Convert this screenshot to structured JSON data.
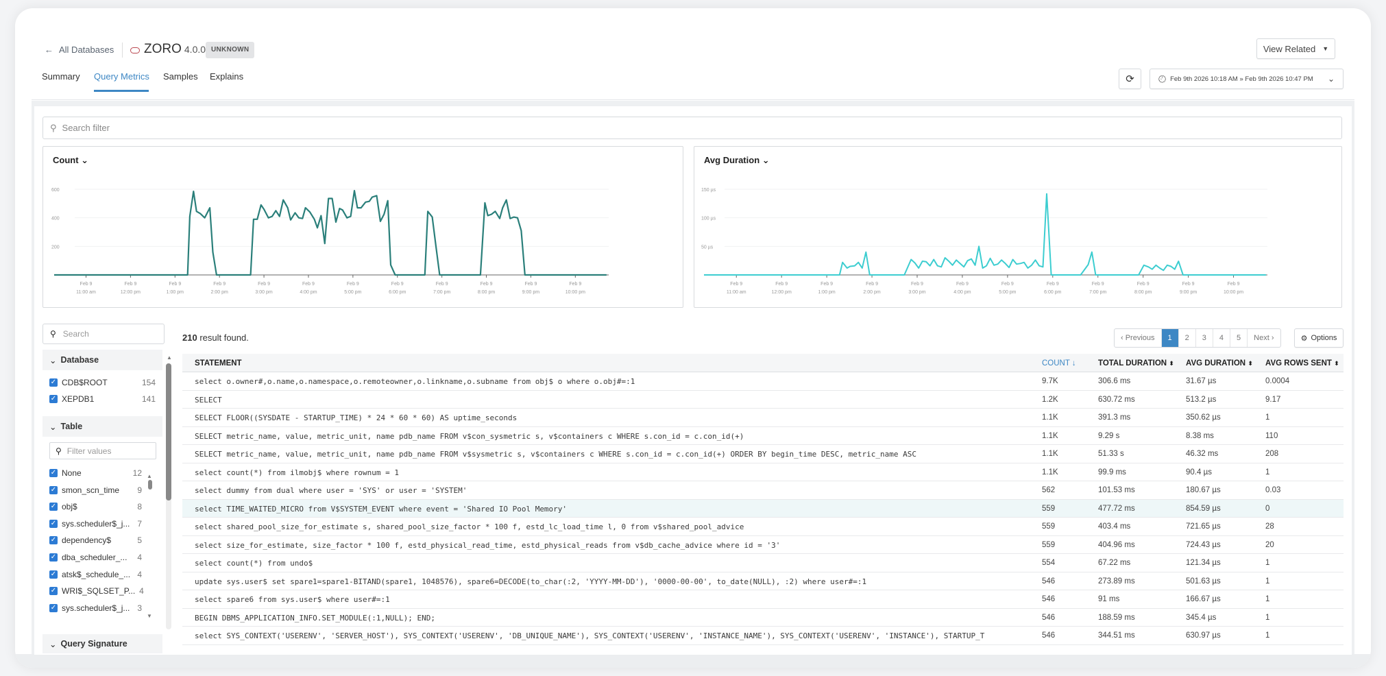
{
  "header": {
    "back_label": "All Databases",
    "db_name": "ZORO",
    "db_version": "4.0.0",
    "status_badge": "UNKNOWN",
    "view_related": "View Related",
    "date_range": "Feb 9th 2026 10:18 AM » Feb 9th 2026 10:47 PM",
    "tabs": [
      {
        "label": "Summary"
      },
      {
        "label": "Query Metrics",
        "active": true
      },
      {
        "label": "Samples"
      },
      {
        "label": "Explains"
      }
    ]
  },
  "search": {
    "placeholder": "Search filter"
  },
  "colors": {
    "accent": "#3d87c4",
    "count_line": "#2a7f7a",
    "duration_line": "#3ccdd0",
    "db_icon": "#b9474f"
  },
  "chart_data": [
    {
      "type": "line",
      "title": "Count",
      "x_date": "Feb 9",
      "ylim": [
        0,
        600
      ],
      "yticks": [
        "200",
        "400",
        "600"
      ],
      "ytick_values": [
        200,
        400,
        600
      ],
      "xticks": [
        "11:00 am",
        "12:00 pm",
        "1:00 pm",
        "2:00 pm",
        "3:00 pm",
        "4:00 pm",
        "5:00 pm",
        "6:00 pm",
        "7:00 pm",
        "8:00 pm",
        "9:00 pm",
        "10:00 pm"
      ],
      "xlim": [
        "10:17",
        "22:45"
      ],
      "points": [
        [
          "10:17",
          0
        ],
        [
          "13:17",
          0
        ],
        [
          "13:20",
          410
        ],
        [
          "13:25",
          585
        ],
        [
          "13:29",
          445
        ],
        [
          "13:34",
          430
        ],
        [
          "13:40",
          400
        ],
        [
          "13:47",
          470
        ],
        [
          "13:51",
          160
        ],
        [
          "13:56",
          0
        ],
        [
          "14:42",
          0
        ],
        [
          "14:46",
          390
        ],
        [
          "14:51",
          390
        ],
        [
          "14:56",
          490
        ],
        [
          "15:00",
          460
        ],
        [
          "15:06",
          400
        ],
        [
          "15:11",
          410
        ],
        [
          "15:16",
          450
        ],
        [
          "15:21",
          410
        ],
        [
          "15:26",
          525
        ],
        [
          "15:32",
          470
        ],
        [
          "15:36",
          385
        ],
        [
          "15:42",
          435
        ],
        [
          "15:47",
          400
        ],
        [
          "15:52",
          395
        ],
        [
          "15:56",
          470
        ],
        [
          "16:02",
          440
        ],
        [
          "16:08",
          390
        ],
        [
          "16:12",
          330
        ],
        [
          "16:17",
          415
        ],
        [
          "16:22",
          220
        ],
        [
          "16:27",
          535
        ],
        [
          "16:32",
          535
        ],
        [
          "16:37",
          370
        ],
        [
          "16:42",
          465
        ],
        [
          "16:46",
          455
        ],
        [
          "16:52",
          400
        ],
        [
          "16:57",
          410
        ],
        [
          "17:02",
          590
        ],
        [
          "17:06",
          470
        ],
        [
          "17:11",
          470
        ],
        [
          "17:17",
          510
        ],
        [
          "17:22",
          515
        ],
        [
          "17:26",
          545
        ],
        [
          "17:32",
          555
        ],
        [
          "17:37",
          375
        ],
        [
          "17:42",
          425
        ],
        [
          "17:47",
          520
        ],
        [
          "17:51",
          70
        ],
        [
          "17:57",
          0
        ],
        [
          "18:37",
          0
        ],
        [
          "18:41",
          445
        ],
        [
          "18:47",
          405
        ],
        [
          "18:52",
          200
        ],
        [
          "18:57",
          0
        ],
        [
          "19:52",
          0
        ],
        [
          "19:58",
          505
        ],
        [
          "20:02",
          415
        ],
        [
          "20:07",
          425
        ],
        [
          "20:12",
          445
        ],
        [
          "20:18",
          395
        ],
        [
          "20:22",
          470
        ],
        [
          "20:27",
          525
        ],
        [
          "20:32",
          395
        ],
        [
          "20:37",
          405
        ],
        [
          "20:42",
          400
        ],
        [
          "20:47",
          310
        ],
        [
          "20:52",
          0
        ],
        [
          "22:42",
          0
        ]
      ]
    },
    {
      "type": "line",
      "title": "Avg Duration",
      "x_date": "Feb 9",
      "ylim": [
        0,
        150
      ],
      "yticks": [
        "50 µs",
        "100 µs",
        "150 µs"
      ],
      "ytick_values": [
        50,
        100,
        150
      ],
      "xticks": [
        "11:00 am",
        "12:00 pm",
        "1:00 pm",
        "2:00 pm",
        "3:00 pm",
        "4:00 pm",
        "5:00 pm",
        "6:00 pm",
        "7:00 pm",
        "8:00 pm",
        "9:00 pm",
        "10:00 pm"
      ],
      "xlim": [
        "10:17",
        "22:45"
      ],
      "points": [
        [
          "10:17",
          0
        ],
        [
          "13:17",
          0
        ],
        [
          "13:21",
          22
        ],
        [
          "13:27",
          12
        ],
        [
          "13:31",
          15
        ],
        [
          "13:37",
          16
        ],
        [
          "13:42",
          22
        ],
        [
          "13:47",
          12
        ],
        [
          "13:52",
          40
        ],
        [
          "13:57",
          0
        ],
        [
          "14:43",
          0
        ],
        [
          "14:52",
          27
        ],
        [
          "14:57",
          21
        ],
        [
          "15:02",
          12
        ],
        [
          "15:07",
          24
        ],
        [
          "15:12",
          23
        ],
        [
          "15:17",
          16
        ],
        [
          "15:22",
          27
        ],
        [
          "15:27",
          16
        ],
        [
          "15:32",
          14
        ],
        [
          "15:37",
          30
        ],
        [
          "15:42",
          24
        ],
        [
          "15:47",
          17
        ],
        [
          "15:52",
          26
        ],
        [
          "15:57",
          20
        ],
        [
          "16:02",
          14
        ],
        [
          "16:07",
          25
        ],
        [
          "16:12",
          28
        ],
        [
          "16:17",
          17
        ],
        [
          "16:22",
          50
        ],
        [
          "16:27",
          12
        ],
        [
          "16:32",
          16
        ],
        [
          "16:37",
          29
        ],
        [
          "16:42",
          17
        ],
        [
          "16:47",
          19
        ],
        [
          "16:52",
          26
        ],
        [
          "16:57",
          20
        ],
        [
          "17:02",
          13
        ],
        [
          "17:07",
          27
        ],
        [
          "17:12",
          19
        ],
        [
          "17:17",
          20
        ],
        [
          "17:22",
          22
        ],
        [
          "17:27",
          12
        ],
        [
          "17:32",
          17
        ],
        [
          "17:37",
          26
        ],
        [
          "17:42",
          16
        ],
        [
          "17:47",
          14
        ],
        [
          "17:52",
          142
        ],
        [
          "17:58",
          0
        ],
        [
          "18:37",
          0
        ],
        [
          "18:47",
          18
        ],
        [
          "18:52",
          40
        ],
        [
          "18:57",
          0
        ],
        [
          "19:54",
          0
        ],
        [
          "20:01",
          17
        ],
        [
          "20:07",
          14
        ],
        [
          "20:12",
          10
        ],
        [
          "20:17",
          17
        ],
        [
          "20:22",
          12
        ],
        [
          "20:27",
          8
        ],
        [
          "20:32",
          17
        ],
        [
          "20:37",
          15
        ],
        [
          "20:42",
          10
        ],
        [
          "20:47",
          24
        ],
        [
          "20:53",
          0
        ],
        [
          "22:43",
          0
        ]
      ]
    }
  ],
  "sidebar": {
    "search_placeholder": "Search",
    "database": {
      "title": "Database",
      "items": [
        {
          "label": "CDB$ROOT",
          "count": "154"
        },
        {
          "label": "XEPDB1",
          "count": "141"
        }
      ]
    },
    "table": {
      "title": "Table",
      "filter_placeholder": "Filter values",
      "items": [
        {
          "label": "None",
          "count": "12"
        },
        {
          "label": "smon_scn_time",
          "count": "9"
        },
        {
          "label": "obj$",
          "count": "8"
        },
        {
          "label": "sys.scheduler$_j...",
          "count": "7"
        },
        {
          "label": "dependency$",
          "count": "5"
        },
        {
          "label": "dba_scheduler_...",
          "count": "4"
        },
        {
          "label": "atsk$_schedule_...",
          "count": "4"
        },
        {
          "label": "WRI$_SQLSET_P...",
          "count": "4"
        },
        {
          "label": "sys.scheduler$_j...",
          "count": "3"
        }
      ]
    },
    "query_signature": {
      "title": "Query Signature"
    }
  },
  "results": {
    "count": "210",
    "suffix": " result found.",
    "pagination": {
      "previous": "‹ Previous",
      "pages": [
        "1",
        "2",
        "3",
        "4",
        "5"
      ],
      "current": "1",
      "next": "Next ›"
    },
    "options": "Options",
    "columns": [
      "STATEMENT",
      "COUNT",
      "TOTAL DURATION",
      "AVG DURATION",
      "AVG ROWS SENT"
    ],
    "sorted_column": "COUNT",
    "rows": [
      [
        "select o.owner#,o.name,o.namespace,o.remoteowner,o.linkname,o.subname from obj$ o where o.obj#=:1",
        "9.7K",
        "306.6 ms",
        "31.67 µs",
        "0.0004"
      ],
      [
        "SELECT",
        "1.2K",
        "630.72 ms",
        "513.2 µs",
        "9.17"
      ],
      [
        "SELECT FLOOR((SYSDATE - STARTUP_TIME) * 24 * 60 * 60) AS uptime_seconds",
        "1.1K",
        "391.3 ms",
        "350.62 µs",
        "1"
      ],
      [
        "SELECT metric_name, value, metric_unit, name pdb_name FROM v$con_sysmetric s, v$containers c WHERE s.con_id = c.con_id(+)",
        "1.1K",
        "9.29 s",
        "8.38 ms",
        "110"
      ],
      [
        "SELECT metric_name, value, metric_unit, name pdb_name FROM v$sysmetric s, v$containers c WHERE s.con_id = c.con_id(+) ORDER BY begin_time DESC, metric_name ASC",
        "1.1K",
        "51.33 s",
        "46.32 ms",
        "208"
      ],
      [
        "select count(*) from ilmobj$ where rownum = 1",
        "1.1K",
        "99.9 ms",
        "90.4 µs",
        "1"
      ],
      [
        "select dummy from dual where user = 'SYS' or user = 'SYSTEM'",
        "562",
        "101.53 ms",
        "180.67 µs",
        "0.03"
      ],
      [
        "select TIME_WAITED_MICRO from V$SYSTEM_EVENT where event = 'Shared IO Pool Memory'",
        "559",
        "477.72 ms",
        "854.59 µs",
        "0"
      ],
      [
        "select shared_pool_size_for_estimate s, shared_pool_size_factor * 100 f, estd_lc_load_time l, 0 from v$shared_pool_advice",
        "559",
        "403.4 ms",
        "721.65 µs",
        "28"
      ],
      [
        "select size_for_estimate, size_factor * 100 f, estd_physical_read_time, estd_physical_reads from v$db_cache_advice where id = '3'",
        "559",
        "404.96 ms",
        "724.43 µs",
        "20"
      ],
      [
        "select count(*) from undo$",
        "554",
        "67.22 ms",
        "121.34 µs",
        "1"
      ],
      [
        "update sys.user$ set spare1=spare1-BITAND(spare1, 1048576), spare6=DECODE(to_char(:2, 'YYYY-MM-DD'), '0000-00-00', to_date(NULL), :2) where user#=:1",
        "546",
        "273.89 ms",
        "501.63 µs",
        "1"
      ],
      [
        "select spare6 from sys.user$ where user#=:1",
        "546",
        "91 ms",
        "166.67 µs",
        "1"
      ],
      [
        "BEGIN DBMS_APPLICATION_INFO.SET_MODULE(:1,NULL); END;",
        "546",
        "188.59 ms",
        "345.4 µs",
        "1"
      ],
      [
        "select SYS_CONTEXT('USERENV', 'SERVER_HOST'), SYS_CONTEXT('USERENV', 'DB_UNIQUE_NAME'), SYS_CONTEXT('USERENV', 'INSTANCE_NAME'), SYS_CONTEXT('USERENV', 'INSTANCE'), STARTUP_T",
        "546",
        "344.51 ms",
        "630.97 µs",
        "1"
      ]
    ]
  }
}
